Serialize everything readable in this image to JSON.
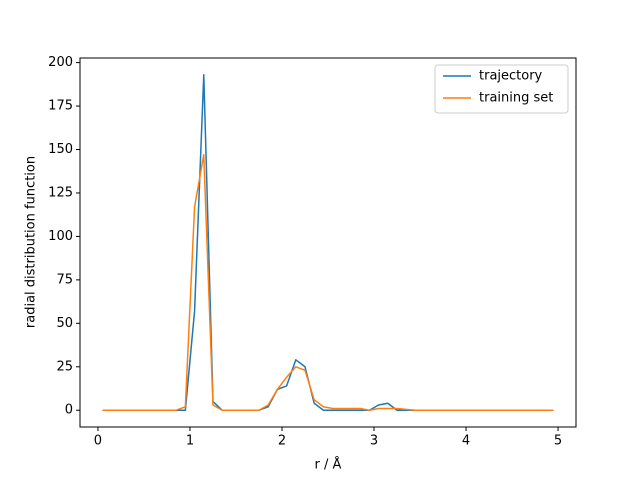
{
  "chart_data": {
    "type": "line",
    "xlabel": "r / Å",
    "ylabel": "radial distribution function",
    "x": [
      0.05,
      0.15,
      0.25,
      0.35,
      0.45,
      0.55,
      0.65,
      0.75,
      0.85,
      0.95,
      1.05,
      1.15,
      1.25,
      1.35,
      1.45,
      1.55,
      1.65,
      1.75,
      1.85,
      1.95,
      2.05,
      2.15,
      2.25,
      2.35,
      2.45,
      2.55,
      2.65,
      2.75,
      2.85,
      2.95,
      3.05,
      3.15,
      3.25,
      3.35,
      3.45,
      3.55,
      3.65,
      3.75,
      3.85,
      3.95,
      4.05,
      4.15,
      4.25,
      4.35,
      4.45,
      4.55,
      4.65,
      4.75,
      4.85,
      4.95
    ],
    "series": [
      {
        "name": "trajectory",
        "color": "#1f77b4",
        "values": [
          0,
          0,
          0,
          0,
          0,
          0,
          0,
          0,
          0,
          0,
          57,
          193,
          5,
          0,
          0,
          0,
          0,
          0,
          2,
          12,
          14,
          29,
          25,
          4,
          0,
          0,
          0,
          0,
          0,
          0,
          3,
          4,
          0,
          0,
          0,
          0,
          0,
          0,
          0,
          0,
          0,
          0,
          0,
          0,
          0,
          0,
          0,
          0,
          0,
          0
        ]
      },
      {
        "name": "training set",
        "color": "#ff7f0e",
        "values": [
          0,
          0,
          0,
          0,
          0,
          0,
          0,
          0,
          0,
          2,
          117,
          147,
          3,
          0,
          0,
          0,
          0,
          0,
          3,
          12,
          19,
          25,
          23,
          6,
          2,
          1,
          1,
          1,
          1,
          0,
          1,
          1,
          1,
          0.5,
          0,
          0,
          0,
          0,
          0,
          0,
          0,
          0,
          0,
          0,
          0,
          0,
          0,
          0,
          0,
          0
        ]
      }
    ],
    "xlim": [
      -0.195,
      5.195
    ],
    "ylim": [
      -9.65,
      202.65
    ],
    "xticks": [
      0,
      1,
      2,
      3,
      4,
      5
    ],
    "yticks": [
      0,
      25,
      50,
      75,
      100,
      125,
      150,
      175,
      200
    ],
    "legend": "upper right"
  }
}
